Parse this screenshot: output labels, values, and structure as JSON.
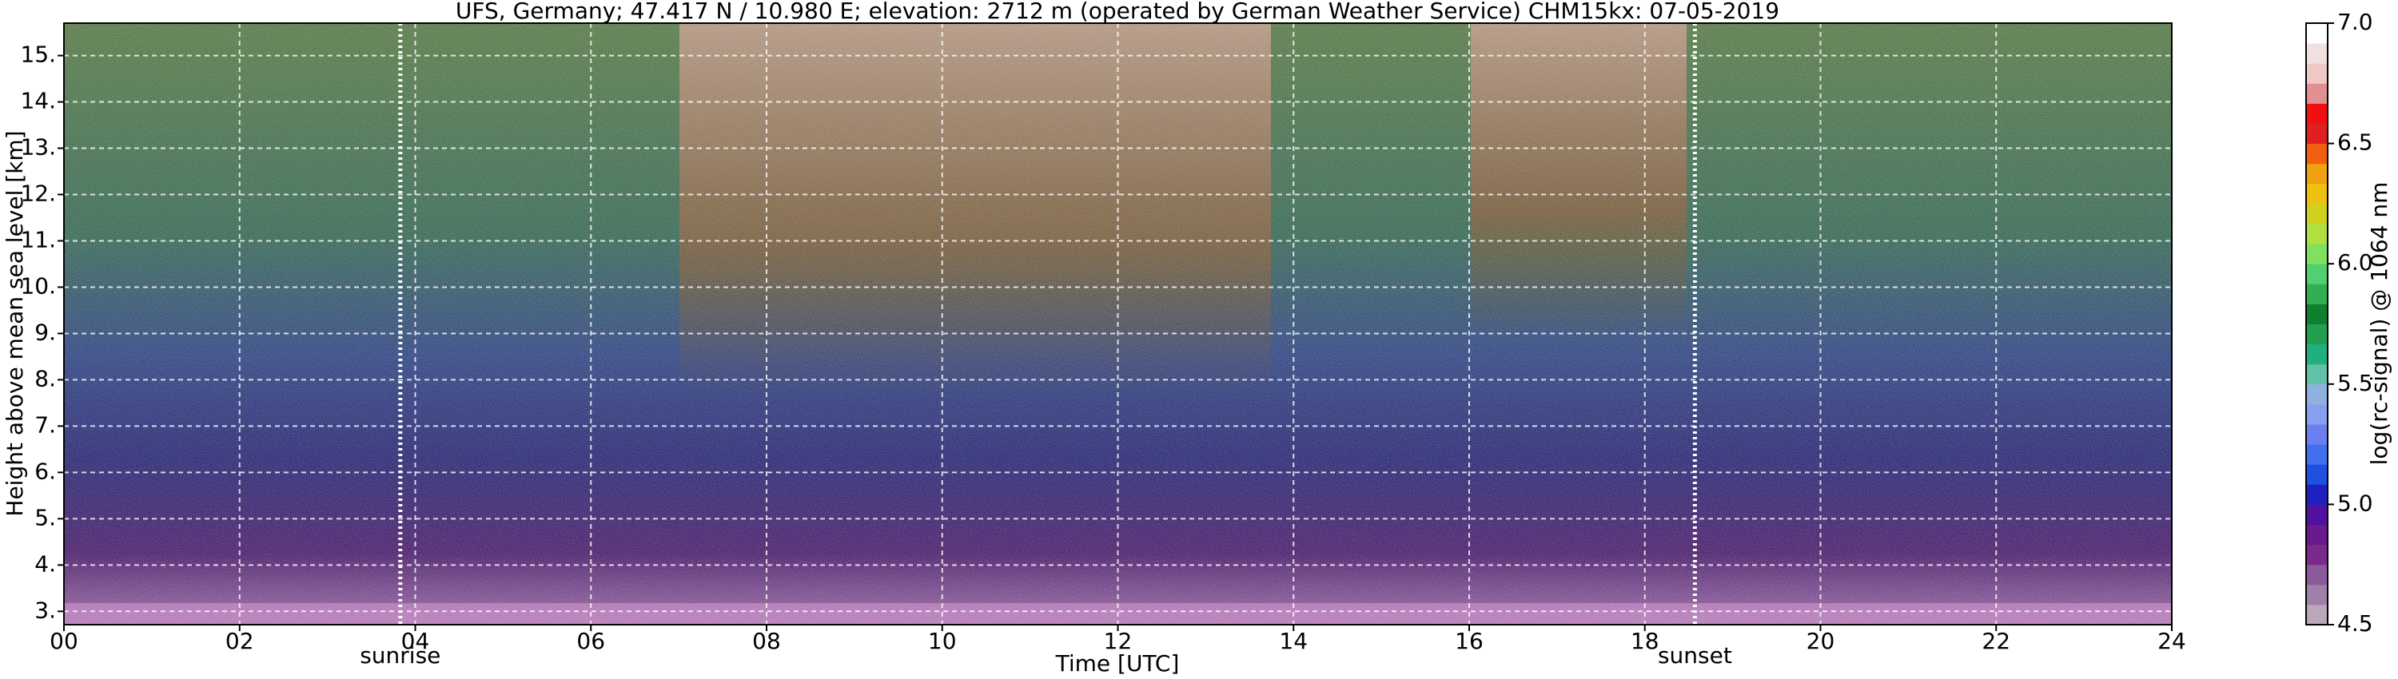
{
  "chart_data": {
    "type": "heatmap",
    "title": "UFS, Germany; 47.417 N / 10.980 E; elevation: 2712 m  (operated by German Weather Service)     CHM15kx: 07-05-2019",
    "x_label": "Time [UTC]",
    "y_label": "Height above mean sea level [km]",
    "xlim": [
      0,
      24
    ],
    "xticks": [
      {
        "value": 0,
        "label": "00"
      },
      {
        "value": 2,
        "label": "02"
      },
      {
        "value": 4,
        "label": "04"
      },
      {
        "value": 6,
        "label": "06"
      },
      {
        "value": 8,
        "label": "08"
      },
      {
        "value": 10,
        "label": "10"
      },
      {
        "value": 12,
        "label": "12"
      },
      {
        "value": 14,
        "label": "14"
      },
      {
        "value": 16,
        "label": "16"
      },
      {
        "value": 18,
        "label": "18"
      },
      {
        "value": 20,
        "label": "20"
      },
      {
        "value": 22,
        "label": "22"
      },
      {
        "value": 24,
        "label": "24"
      }
    ],
    "ylim": [
      2.712,
      15.7
    ],
    "yticks": [
      {
        "value": 3,
        "label": "3."
      },
      {
        "value": 4,
        "label": "4."
      },
      {
        "value": 5,
        "label": "5."
      },
      {
        "value": 6,
        "label": "6."
      },
      {
        "value": 7,
        "label": "7."
      },
      {
        "value": 8,
        "label": "8."
      },
      {
        "value": 9,
        "label": "9."
      },
      {
        "value": 10,
        "label": "10."
      },
      {
        "value": 11,
        "label": "11."
      },
      {
        "value": 12,
        "label": "12."
      },
      {
        "value": 13,
        "label": "13."
      },
      {
        "value": 14,
        "label": "14."
      },
      {
        "value": 15,
        "label": "15."
      }
    ],
    "grid": true,
    "annotations": [
      {
        "x": 3.83,
        "label": "sunrise"
      },
      {
        "x": 18.57,
        "label": "sunset"
      }
    ],
    "colorbar": {
      "label": "log(rc-signal) @ 1064 nm",
      "lim": [
        4.5,
        7.0
      ],
      "ticks": [
        4.5,
        {
          "value": 5.0,
          "label": "5.0"
        },
        5.5,
        {
          "value": 6.0,
          "label": "6.0"
        },
        6.5,
        {
          "value": 7.0,
          "label": "7.0"
        }
      ],
      "colors": [
        "#b8a8b8",
        "#a080a8",
        "#8a5a9a",
        "#7a2a8a",
        "#6a1a8a",
        "#5010a0",
        "#2020c0",
        "#2050e0",
        "#4070f0",
        "#6a80f0",
        "#8a9ef0",
        "#90b0e0",
        "#60c0a8",
        "#20b080",
        "#20a050",
        "#108030",
        "#30b050",
        "#50d070",
        "#80e060",
        "#b0e040",
        "#d0d020",
        "#f0c010",
        "#f0a010",
        "#f06010",
        "#e02020",
        "#f01010",
        "#e09090",
        "#f0c8c8",
        "#f0e0e0",
        "#ffffff"
      ]
    }
  }
}
